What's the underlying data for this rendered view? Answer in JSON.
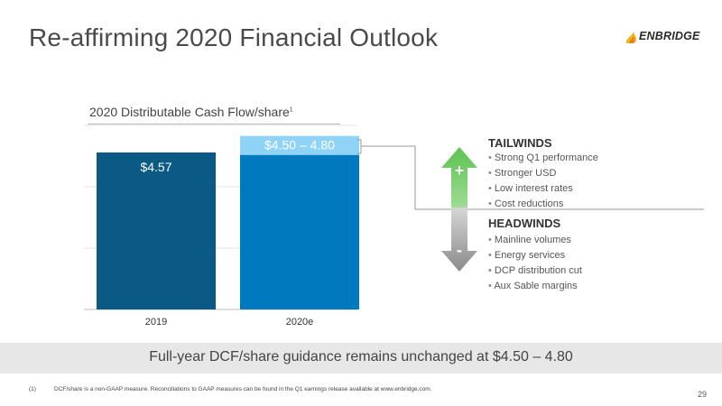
{
  "slide": {
    "title": "Re-affirming 2020 Financial Outlook",
    "logo_text": "ENBRIDGE",
    "page_number": "29"
  },
  "chart_title": {
    "text": "2020 Distributable Cash Flow/share",
    "sup": "1"
  },
  "chart_data": {
    "type": "bar",
    "title": "2020 Distributable Cash Flow/share",
    "categories": [
      "2019",
      "2020e"
    ],
    "series": [
      {
        "values": [
          4.57,
          4.5
        ]
      }
    ],
    "range_top": {
      "category": "2020e",
      "low": 4.5,
      "high": 4.8
    },
    "data_labels": [
      "$4.57",
      "$4.50 – 4.80"
    ],
    "colors": {
      "bar_2019": "#0b5a85",
      "bar_2020": "#0079be",
      "range": "#8fd4f7"
    },
    "grid": true,
    "ylabel": "",
    "xlabel": ""
  },
  "tailwinds": {
    "heading": "TAILWINDS",
    "items": [
      "Strong Q1 performance",
      "Stronger USD",
      "Low interest rates",
      "Cost reductions"
    ]
  },
  "headwinds": {
    "heading": "HEADWINDS",
    "items": [
      "Mainline volumes",
      "Energy services",
      "DCP distribution cut",
      "Aux Sable margins"
    ]
  },
  "arrow": {
    "plus": "+",
    "minus": "-",
    "up_color": "#4eb848",
    "down_color": "#8a8a8a"
  },
  "banner": {
    "text": "Full-year DCF/share guidance remains unchanged at $4.50 – 4.80"
  },
  "footnote": {
    "number": "(1)",
    "text": "DCF/share is a non-GAAP measure. Reconciliations to GAAP measures can be found in the Q1 earnings release available at www.enbridge.com."
  }
}
